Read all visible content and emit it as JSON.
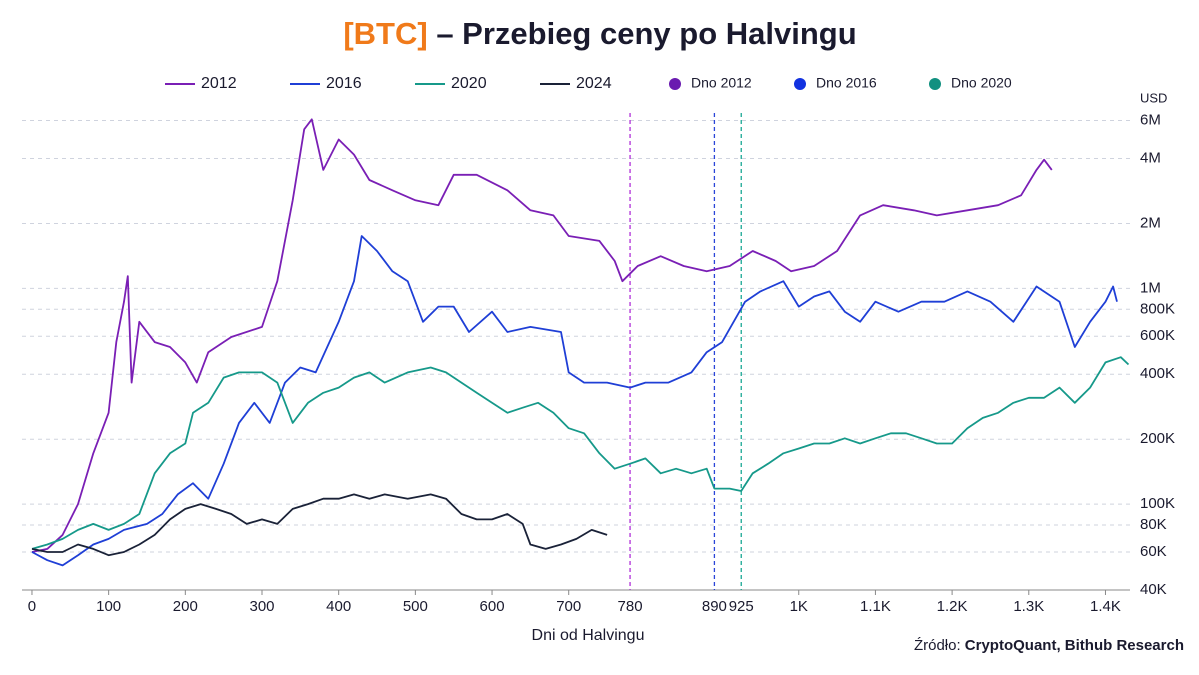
{
  "chart_data": {
    "type": "line",
    "title": {
      "highlight": "[BTC]",
      "text": "– Przebieg ceny po Halvingu"
    },
    "x_label": "Dni od Halvingu",
    "y_unit": "USD",
    "source": {
      "label": "Źródło:",
      "text": "CryptoQuant, Bithub Research"
    },
    "log_y": true,
    "grid": true,
    "xlim": [
      -13,
      1432
    ],
    "ylim": [
      40000,
      6500000
    ],
    "xticks": [
      0,
      100,
      200,
      300,
      400,
      500,
      600,
      700,
      {
        "value": 1000,
        "label": "1K"
      },
      {
        "value": 1100,
        "label": "1.1K"
      },
      {
        "value": 1200,
        "label": "1.2K"
      },
      {
        "value": 1300,
        "label": "1.3K"
      },
      {
        "value": 1400,
        "label": "1.4K"
      }
    ],
    "yticks": [
      {
        "value": 40000,
        "label": "40K"
      },
      {
        "value": 60000,
        "label": "60K"
      },
      {
        "value": 80000,
        "label": "80K"
      },
      {
        "value": 100000,
        "label": "100K"
      },
      {
        "value": 200000,
        "label": "200K"
      },
      {
        "value": 400000,
        "label": "400K"
      },
      {
        "value": 600000,
        "label": "600K"
      },
      {
        "value": 800000,
        "label": "800K"
      },
      {
        "value": 1000000,
        "label": "1M"
      },
      {
        "value": 2000000,
        "label": "2M"
      },
      {
        "value": 4000000,
        "label": "4M"
      },
      {
        "value": 6000000,
        "label": "6M"
      }
    ],
    "series": [
      {
        "name": "2012",
        "color": "#7a1fb5",
        "x": [
          0,
          20,
          40,
          60,
          80,
          100,
          110,
          120,
          125,
          130,
          140,
          160,
          180,
          200,
          215,
          230,
          260,
          300,
          320,
          340,
          355,
          365,
          380,
          400,
          420,
          440,
          470,
          500,
          530,
          550,
          580,
          620,
          650,
          680,
          700,
          740,
          760,
          770,
          790,
          820,
          850,
          880,
          910,
          940,
          970,
          990,
          1020,
          1050,
          1080,
          1110,
          1150,
          1180,
          1220,
          1260,
          1290,
          1310,
          1320,
          1330
        ],
        "values": [
          60000,
          62000,
          72000,
          100000,
          172000,
          265000,
          564000,
          868000,
          1140000,
          366000,
          700000,
          564000,
          535000,
          454000,
          366000,
          506000,
          595000,
          663000,
          1080000,
          2560000,
          5460000,
          6080000,
          3540000,
          4900000,
          4170000,
          3180000,
          2850000,
          2560000,
          2430000,
          3360000,
          3360000,
          2850000,
          2300000,
          2180000,
          1750000,
          1660000,
          1340000,
          1080000,
          1270000,
          1410000,
          1270000,
          1200000,
          1270000,
          1490000,
          1340000,
          1200000,
          1270000,
          1490000,
          2180000,
          2430000,
          2300000,
          2180000,
          2300000,
          2430000,
          2700000,
          3540000,
          3950000,
          3540000
        ]
      },
      {
        "name": "2016",
        "color": "#1f3fd6",
        "x": [
          0,
          20,
          40,
          60,
          80,
          100,
          120,
          150,
          170,
          190,
          210,
          230,
          250,
          270,
          290,
          310,
          330,
          350,
          370,
          400,
          420,
          430,
          450,
          470,
          490,
          510,
          530,
          550,
          570,
          600,
          620,
          650,
          690,
          700,
          720,
          750,
          780,
          800,
          830,
          860,
          880,
          900,
          930,
          950,
          980,
          1000,
          1020,
          1040,
          1060,
          1080,
          1100,
          1130,
          1160,
          1190,
          1220,
          1250,
          1280,
          1310,
          1340,
          1360,
          1380,
          1400,
          1410,
          1415
        ],
        "values": [
          60000,
          55000,
          52000,
          58000,
          65000,
          69000,
          76000,
          81000,
          90000,
          111000,
          125000,
          106000,
          154000,
          238000,
          295000,
          238000,
          366000,
          430000,
          408000,
          700000,
          1080000,
          1750000,
          1490000,
          1200000,
          1080000,
          700000,
          823000,
          823000,
          628000,
          780000,
          628000,
          663000,
          628000,
          408000,
          366000,
          366000,
          347000,
          366000,
          366000,
          408000,
          506000,
          564000,
          868000,
          968000,
          1080000,
          823000,
          917000,
          968000,
          780000,
          700000,
          868000,
          780000,
          868000,
          868000,
          968000,
          868000,
          700000,
          1020000,
          868000,
          535000,
          700000,
          868000,
          1020000,
          868000
        ]
      },
      {
        "name": "2020",
        "color": "#16998a",
        "x": [
          0,
          20,
          40,
          60,
          80,
          100,
          120,
          140,
          160,
          180,
          200,
          210,
          230,
          250,
          270,
          300,
          320,
          340,
          360,
          380,
          400,
          420,
          440,
          460,
          490,
          520,
          540,
          560,
          580,
          600,
          620,
          640,
          660,
          680,
          700,
          720,
          740,
          760,
          780,
          800,
          820,
          840,
          860,
          880,
          890,
          910,
          925,
          940,
          960,
          980,
          1000,
          1020,
          1040,
          1060,
          1080,
          1100,
          1120,
          1140,
          1160,
          1180,
          1200,
          1220,
          1240,
          1260,
          1280,
          1300,
          1320,
          1340,
          1360,
          1380,
          1400,
          1420,
          1430
        ],
        "values": [
          62000,
          65000,
          69000,
          76000,
          81000,
          76000,
          81000,
          90000,
          139000,
          172000,
          191000,
          265000,
          295000,
          386000,
          408000,
          408000,
          366000,
          238000,
          295000,
          328000,
          347000,
          386000,
          408000,
          366000,
          408000,
          430000,
          408000,
          366000,
          328000,
          295000,
          265000,
          280000,
          295000,
          265000,
          225000,
          213000,
          172000,
          146000,
          154000,
          163000,
          139000,
          146000,
          139000,
          146000,
          118000,
          118000,
          115000,
          139000,
          154000,
          172000,
          181000,
          191000,
          191000,
          202000,
          191000,
          202000,
          213000,
          213000,
          202000,
          191000,
          191000,
          225000,
          251000,
          265000,
          295000,
          311000,
          311000,
          347000,
          295000,
          347000,
          454000,
          480000,
          444000
        ]
      },
      {
        "name": "2024",
        "color": "#1a2238",
        "x": [
          0,
          20,
          40,
          60,
          80,
          100,
          120,
          140,
          160,
          180,
          200,
          220,
          240,
          260,
          280,
          300,
          320,
          340,
          360,
          380,
          400,
          420,
          440,
          460,
          490,
          520,
          540,
          560,
          580,
          600,
          620,
          640,
          650,
          670,
          690,
          710,
          730,
          750
        ],
        "values": [
          62000,
          60000,
          60000,
          65000,
          62000,
          58000,
          60000,
          65000,
          72000,
          85000,
          95000,
          100000,
          95000,
          90000,
          81000,
          85000,
          81000,
          95000,
          100000,
          106000,
          106000,
          111000,
          106000,
          111000,
          106000,
          111000,
          106000,
          90000,
          85000,
          85000,
          90000,
          81000,
          65000,
          62000,
          65000,
          69000,
          76000,
          72000
        ]
      }
    ],
    "reference_lines": [
      {
        "name": "Dno 2012",
        "x": 780,
        "color": "#6a1bb0",
        "line_color": "#b02fd8"
      },
      {
        "name": "Dno 2016",
        "x": 890,
        "color": "#1232e0",
        "line_color": "#2a45d8"
      },
      {
        "name": "Dno 2020",
        "x": 925,
        "color": "#119080",
        "line_color": "#1aa894"
      }
    ]
  }
}
